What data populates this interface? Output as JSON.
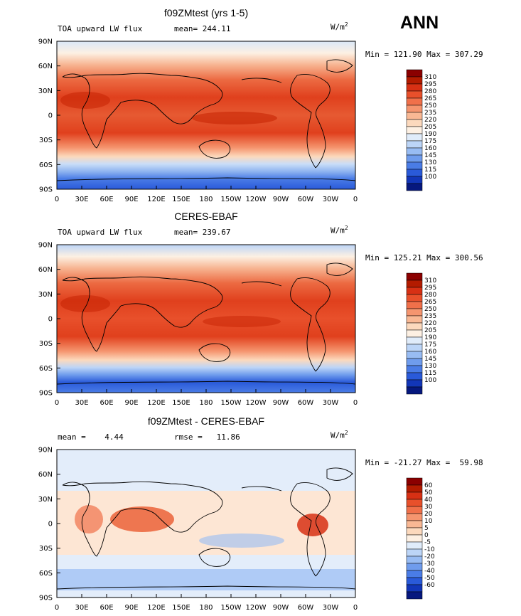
{
  "season": "ANN",
  "lat_ticks": [
    "90N",
    "60N",
    "30N",
    "0",
    "30S",
    "60S",
    "90S"
  ],
  "lon_ticks": [
    "0",
    "30E",
    "60E",
    "90E",
    "120E",
    "150E",
    "180",
    "150W",
    "120W",
    "90W",
    "60W",
    "30W",
    "0"
  ],
  "panels": [
    {
      "title": "f09ZMtest (yrs 1-5)",
      "left_label": "TOA upward LW flux",
      "center_label": "mean= 244.11",
      "units": "W/m",
      "units_sup": "2",
      "minmax": "Min = 121.90 Max = 307.29",
      "colorbar": {
        "labels": [
          "310",
          "295",
          "280",
          "265",
          "250",
          "235",
          "220",
          "205",
          "190",
          "175",
          "160",
          "145",
          "130",
          "115",
          "100"
        ],
        "colors": [
          "#8b0000",
          "#b31b00",
          "#d73014",
          "#e8502b",
          "#f0704a",
          "#f5956f",
          "#f9b894",
          "#fcd9bd",
          "#fdf0e3",
          "#e0ecfa",
          "#bcd5f7",
          "#98bcf3",
          "#6f9ced",
          "#4a7ce6",
          "#2a5ad9",
          "#1236b8",
          "#06187e"
        ]
      }
    },
    {
      "title": "CERES-EBAF",
      "left_label": "TOA upward LW flux",
      "center_label": "mean= 239.67",
      "units": "W/m",
      "units_sup": "2",
      "minmax": "Min = 125.21 Max = 300.56",
      "colorbar": {
        "labels": [
          "310",
          "295",
          "280",
          "265",
          "250",
          "235",
          "220",
          "205",
          "190",
          "175",
          "160",
          "145",
          "130",
          "115",
          "100"
        ],
        "colors": [
          "#8b0000",
          "#b31b00",
          "#d73014",
          "#e8502b",
          "#f0704a",
          "#f5956f",
          "#f9b894",
          "#fcd9bd",
          "#fdf0e3",
          "#e0ecfa",
          "#bcd5f7",
          "#98bcf3",
          "#6f9ced",
          "#4a7ce6",
          "#2a5ad9",
          "#1236b8",
          "#06187e"
        ]
      }
    },
    {
      "title": "f09ZMtest - CERES-EBAF",
      "left_label": "mean =    4.44",
      "center_label": "rmse =   11.86",
      "units": "W/m",
      "units_sup": "2",
      "minmax": "Min = -21.27 Max =  59.98",
      "colorbar": {
        "labels": [
          "60",
          "50",
          "40",
          "30",
          "20",
          "10",
          "5",
          "0",
          "-5",
          "-10",
          "-20",
          "-30",
          "-40",
          "-50",
          "-60"
        ],
        "colors": [
          "#8b0000",
          "#b31b00",
          "#d73014",
          "#e8502b",
          "#f0704a",
          "#f5956f",
          "#f9b894",
          "#fcd9bd",
          "#fdf0e3",
          "#e0ecfa",
          "#bcd5f7",
          "#98bcf3",
          "#6f9ced",
          "#4a7ce6",
          "#2a5ad9",
          "#1236b8",
          "#06187e"
        ]
      }
    }
  ]
}
